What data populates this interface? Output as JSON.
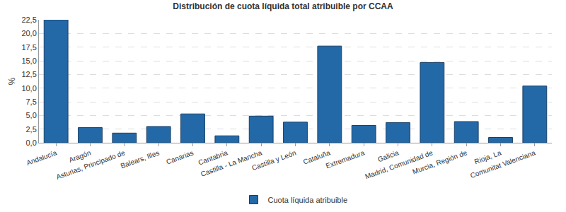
{
  "chart_data": {
    "type": "bar",
    "title": "Distribución de cuota líquida total atribuible por CCAA",
    "y_label": "%",
    "categories": [
      "Andalucía",
      "Aragón",
      "Asturias, Principado de",
      "Balears, Illes",
      "Canarias",
      "Cantabria",
      "Castilla - La Mancha",
      "Castilla y León",
      "Cataluña",
      "Extremadura",
      "Galicia",
      "Madrid, Comunidad de",
      "Murcia, Región de",
      "Rioja, La",
      "Comunitat Valenciana"
    ],
    "series": [
      {
        "name": "Cuota líquida atribuible",
        "color": "#2369a8",
        "values": [
          22.5,
          2.8,
          1.8,
          3.0,
          5.3,
          1.3,
          4.9,
          3.8,
          17.7,
          3.2,
          3.7,
          14.7,
          3.9,
          1.0,
          10.4
        ]
      }
    ],
    "ylim": [
      0,
      22.5
    ],
    "yticks": [
      {
        "value": 0,
        "label": "0,0"
      },
      {
        "value": 2.5,
        "label": "2,5"
      },
      {
        "value": 5,
        "label": "5,0"
      },
      {
        "value": 7.5,
        "label": "7,5"
      },
      {
        "value": 10,
        "label": "10,0"
      },
      {
        "value": 12.5,
        "label": "12,5"
      },
      {
        "value": 15,
        "label": "15,0"
      },
      {
        "value": 17.5,
        "label": "17,5"
      },
      {
        "value": 20,
        "label": "20,0"
      },
      {
        "value": 22.5,
        "label": "22,5"
      }
    ],
    "grid": true,
    "legend": "bottom"
  }
}
